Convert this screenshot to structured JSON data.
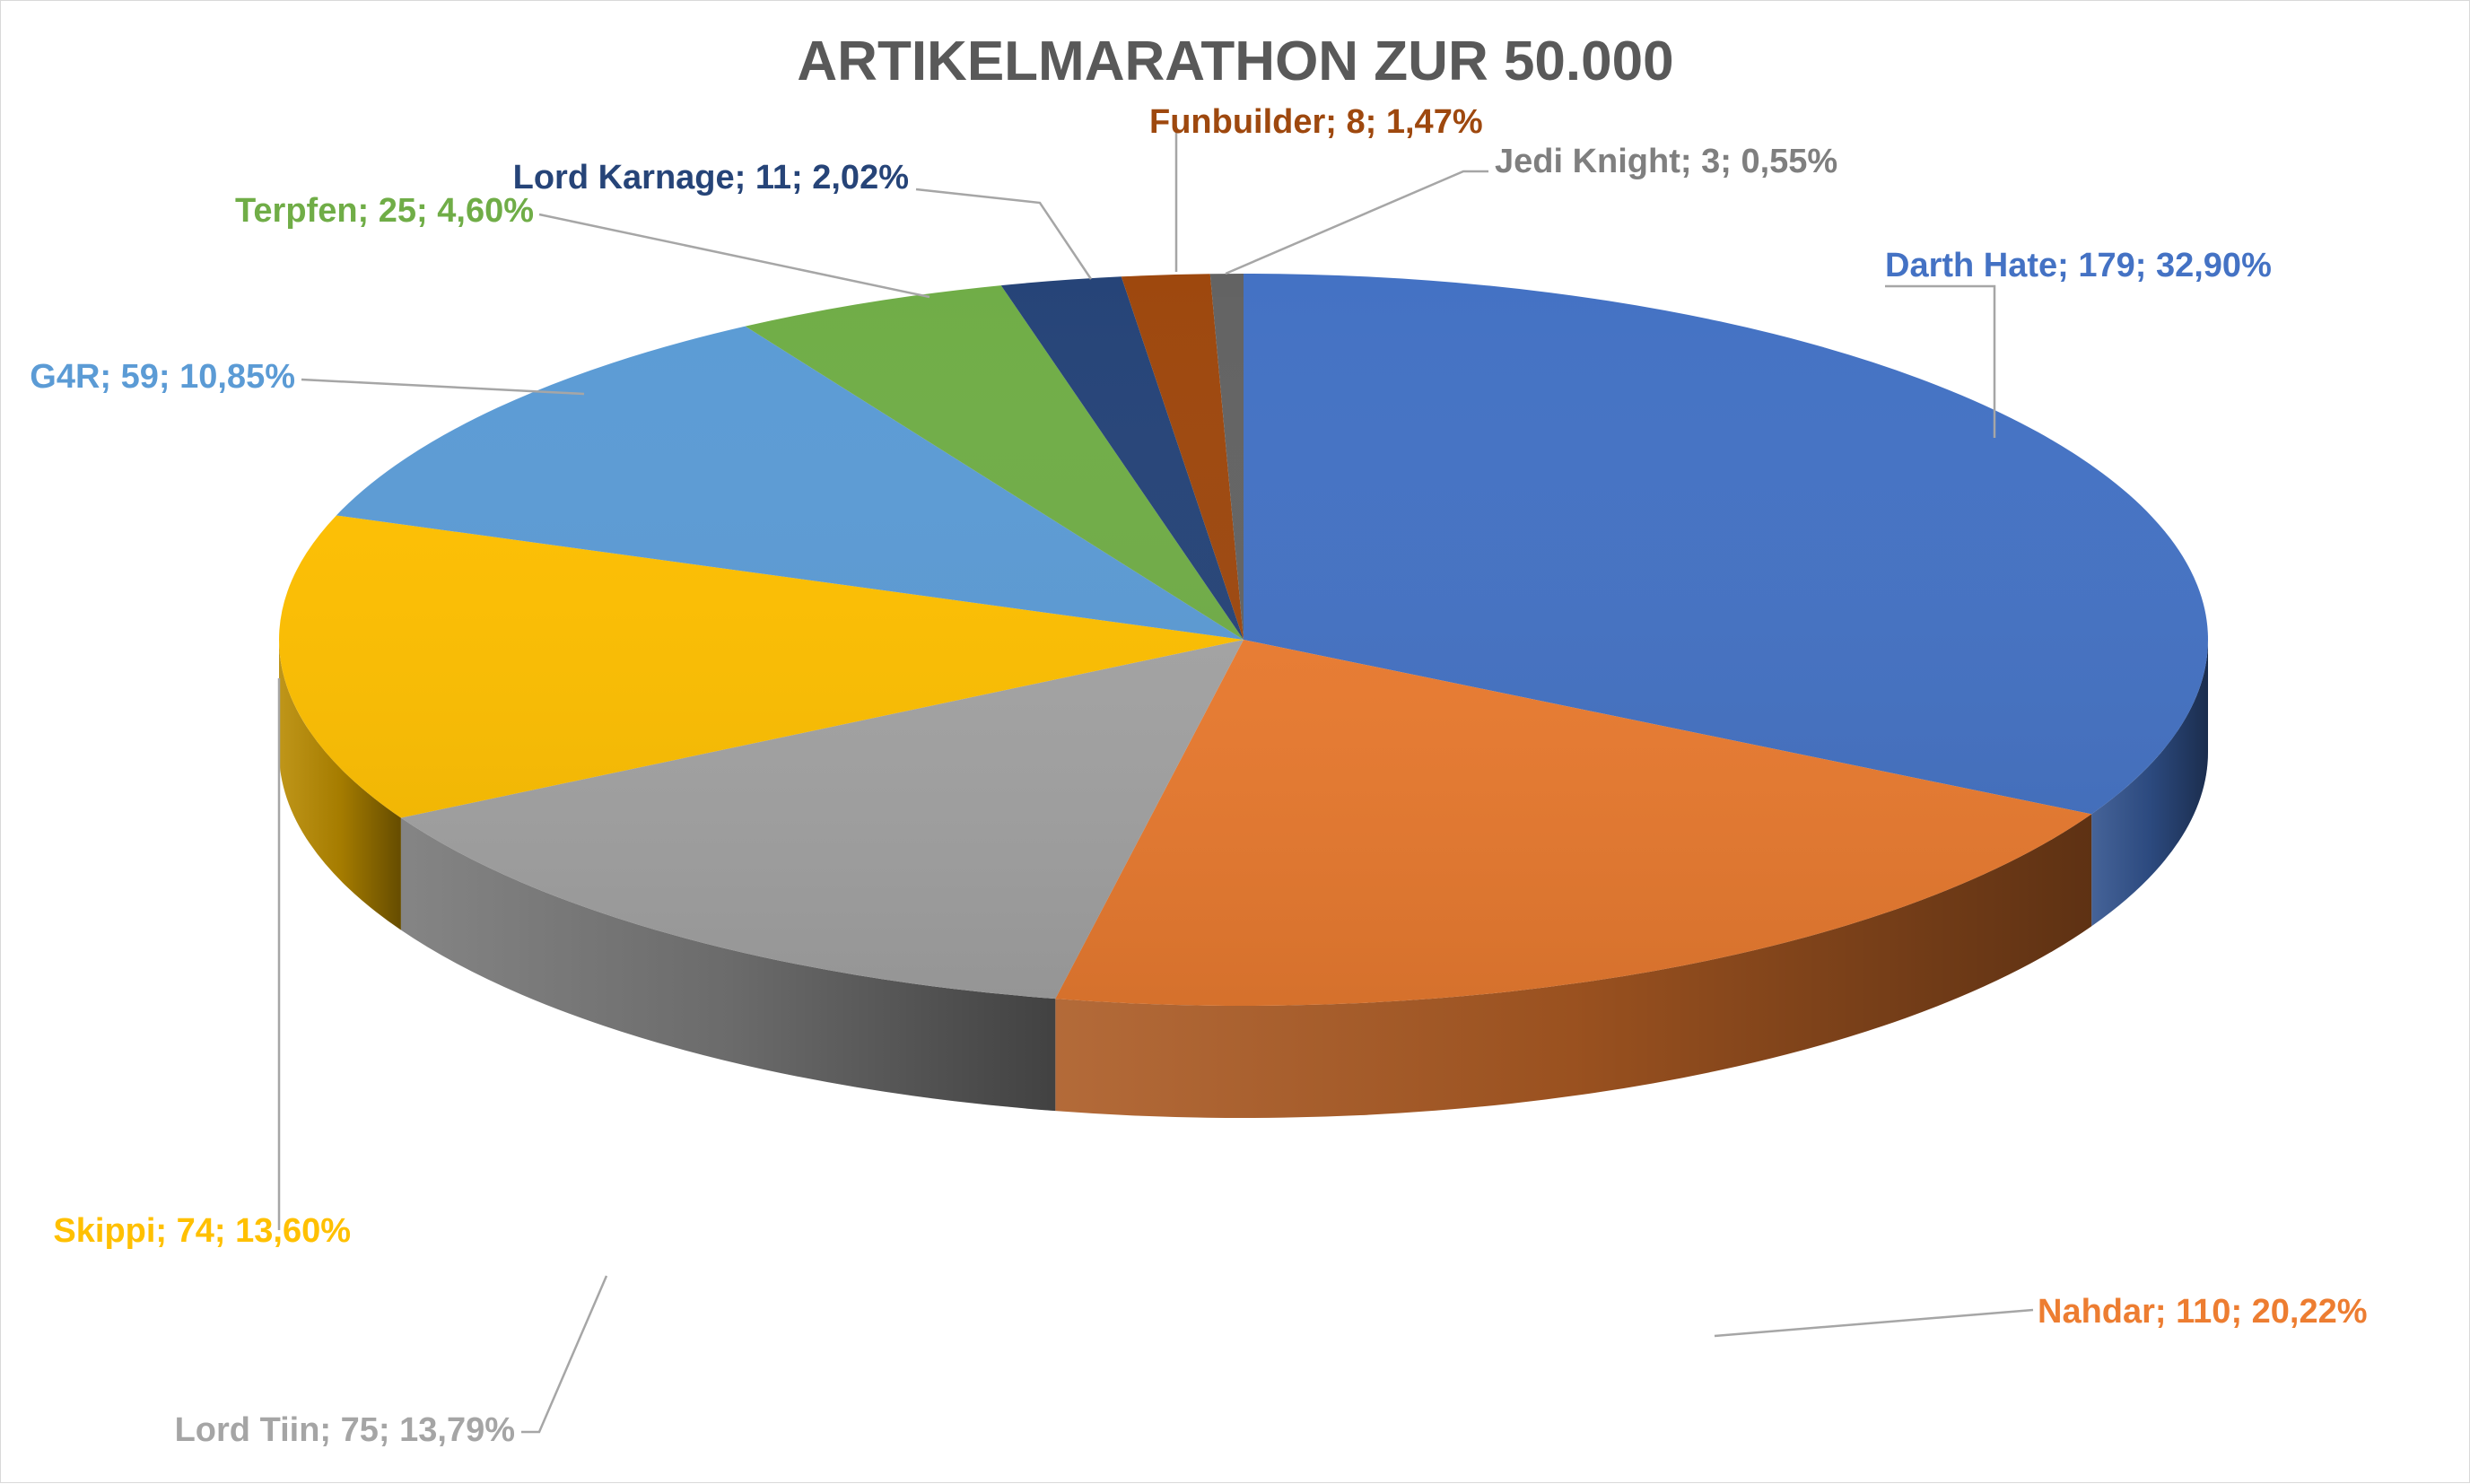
{
  "chart_data": {
    "type": "pie",
    "style": "3d",
    "title": "ARTIKELMARATHON ZUR 50.000",
    "legend": "none",
    "slices": [
      {
        "name": "Darth Hate",
        "value": 179,
        "percent": "32,90%",
        "label": "Darth Hate; 179; 32,90%",
        "color": "#4472C4",
        "label_color": "#4472C4"
      },
      {
        "name": "Nahdar",
        "value": 110,
        "percent": "20,22%",
        "label": "Nahdar; 110; 20,22%",
        "color": "#ED7D31",
        "label_color": "#ED7D31"
      },
      {
        "name": "Lord Tiin",
        "value": 75,
        "percent": "13,79%",
        "label": "Lord Tiin; 75; 13,79%",
        "color": "#A5A5A5",
        "label_color": "#A5A5A5"
      },
      {
        "name": "Skippi",
        "value": 74,
        "percent": "13,60%",
        "label": "Skippi; 74; 13,60%",
        "color": "#FFC000",
        "label_color": "#FFC000"
      },
      {
        "name": "G4R",
        "value": 59,
        "percent": "10,85%",
        "label": "G4R; 59; 10,85%",
        "color": "#5B9BD5",
        "label_color": "#5B9BD5"
      },
      {
        "name": "Terpfen",
        "value": 25,
        "percent": "4,60%",
        "label": "Terpfen; 25; 4,60%",
        "color": "#70AD47",
        "label_color": "#70AD47"
      },
      {
        "name": "Lord Karnage",
        "value": 11,
        "percent": "2,02%",
        "label": "Lord Karnage; 11; 2,02%",
        "color": "#264478",
        "label_color": "#264478"
      },
      {
        "name": "Funbuilder",
        "value": 8,
        "percent": "1,47%",
        "label": "Funbuilder; 8; 1,47%",
        "color": "#9E480E",
        "label_color": "#9E480E"
      },
      {
        "name": "Jedi Knight",
        "value": 3,
        "percent": "0,55%",
        "label": "Jedi Knight; 3; 0,55%",
        "color": "#636363",
        "label_color": "#7F7F7F"
      }
    ]
  }
}
